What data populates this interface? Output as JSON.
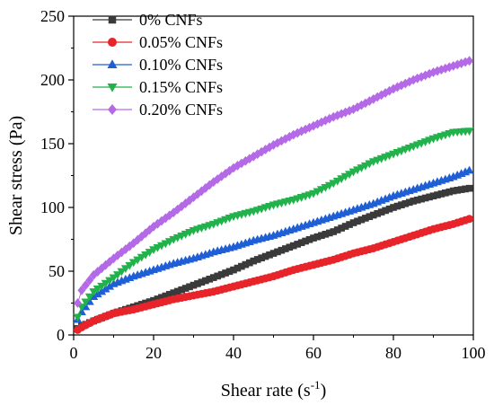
{
  "chart_data": {
    "type": "scatter",
    "xlabel": "Shear rate (s",
    "xlabel_sup": "-1",
    "xlabel_end": ")",
    "ylabel": "Shear stress (Pa)",
    "xlim": [
      0,
      100
    ],
    "ylim": [
      0,
      250
    ],
    "x_ticks": [
      "0",
      "20",
      "40",
      "60",
      "80",
      "100"
    ],
    "y_ticks": [
      "0",
      "50",
      "100",
      "150",
      "200",
      "250"
    ],
    "grid": false,
    "legend_position": "top-left",
    "series": [
      {
        "name": "0% CNFs",
        "color": "#3a3a3a",
        "marker": "square",
        "points": [
          [
            1,
            5
          ],
          [
            2,
            7
          ],
          [
            5,
            11
          ],
          [
            10,
            17
          ],
          [
            15,
            22
          ],
          [
            20,
            27
          ],
          [
            25,
            33
          ],
          [
            30,
            39
          ],
          [
            35,
            45
          ],
          [
            40,
            51
          ],
          [
            45,
            58
          ],
          [
            50,
            64
          ],
          [
            55,
            70
          ],
          [
            60,
            76
          ],
          [
            65,
            81
          ],
          [
            70,
            88
          ],
          [
            75,
            94
          ],
          [
            80,
            100
          ],
          [
            85,
            105
          ],
          [
            90,
            109
          ],
          [
            95,
            113
          ],
          [
            99,
            115
          ]
        ]
      },
      {
        "name": "0.05% CNFs",
        "color": "#e8242b",
        "marker": "circle",
        "points": [
          [
            1,
            4
          ],
          [
            2,
            6
          ],
          [
            5,
            11
          ],
          [
            10,
            17
          ],
          [
            15,
            20
          ],
          [
            20,
            24
          ],
          [
            25,
            28
          ],
          [
            30,
            31
          ],
          [
            35,
            34
          ],
          [
            40,
            38
          ],
          [
            45,
            42
          ],
          [
            50,
            46
          ],
          [
            55,
            51
          ],
          [
            60,
            55
          ],
          [
            65,
            59
          ],
          [
            70,
            64
          ],
          [
            75,
            68
          ],
          [
            80,
            73
          ],
          [
            85,
            78
          ],
          [
            90,
            83
          ],
          [
            95,
            87
          ],
          [
            99,
            91
          ]
        ]
      },
      {
        "name": "0.10% CNFs",
        "color": "#1f5fd6",
        "marker": "triangle-up",
        "points": [
          [
            1,
            12
          ],
          [
            2,
            18
          ],
          [
            5,
            30
          ],
          [
            10,
            40
          ],
          [
            15,
            46
          ],
          [
            20,
            51
          ],
          [
            25,
            56
          ],
          [
            30,
            60
          ],
          [
            35,
            65
          ],
          [
            40,
            69
          ],
          [
            45,
            74
          ],
          [
            50,
            78
          ],
          [
            55,
            83
          ],
          [
            60,
            88
          ],
          [
            65,
            93
          ],
          [
            70,
            98
          ],
          [
            75,
            103
          ],
          [
            80,
            109
          ],
          [
            85,
            114
          ],
          [
            90,
            119
          ],
          [
            95,
            124
          ],
          [
            99,
            129
          ]
        ]
      },
      {
        "name": "0.15% CNFs",
        "color": "#22b24c",
        "marker": "triangle-down",
        "points": [
          [
            1,
            14
          ],
          [
            2,
            22
          ],
          [
            5,
            34
          ],
          [
            10,
            45
          ],
          [
            15,
            57
          ],
          [
            20,
            67
          ],
          [
            25,
            75
          ],
          [
            30,
            82
          ],
          [
            35,
            87
          ],
          [
            40,
            93
          ],
          [
            45,
            97
          ],
          [
            50,
            102
          ],
          [
            55,
            106
          ],
          [
            60,
            111
          ],
          [
            65,
            119
          ],
          [
            70,
            128
          ],
          [
            75,
            136
          ],
          [
            80,
            142
          ],
          [
            85,
            148
          ],
          [
            90,
            154
          ],
          [
            95,
            159
          ],
          [
            99,
            160
          ]
        ]
      },
      {
        "name": "0.20% CNFs",
        "color": "#b46ae6",
        "marker": "diamond",
        "points": [
          [
            1,
            25
          ],
          [
            2,
            35
          ],
          [
            5,
            47
          ],
          [
            10,
            60
          ],
          [
            15,
            72
          ],
          [
            20,
            85
          ],
          [
            25,
            96
          ],
          [
            30,
            108
          ],
          [
            35,
            120
          ],
          [
            40,
            131
          ],
          [
            45,
            140
          ],
          [
            50,
            149
          ],
          [
            55,
            157
          ],
          [
            60,
            164
          ],
          [
            65,
            171
          ],
          [
            70,
            177
          ],
          [
            75,
            185
          ],
          [
            80,
            193
          ],
          [
            85,
            200
          ],
          [
            90,
            206
          ],
          [
            95,
            211
          ],
          [
            99,
            215
          ]
        ]
      }
    ]
  }
}
